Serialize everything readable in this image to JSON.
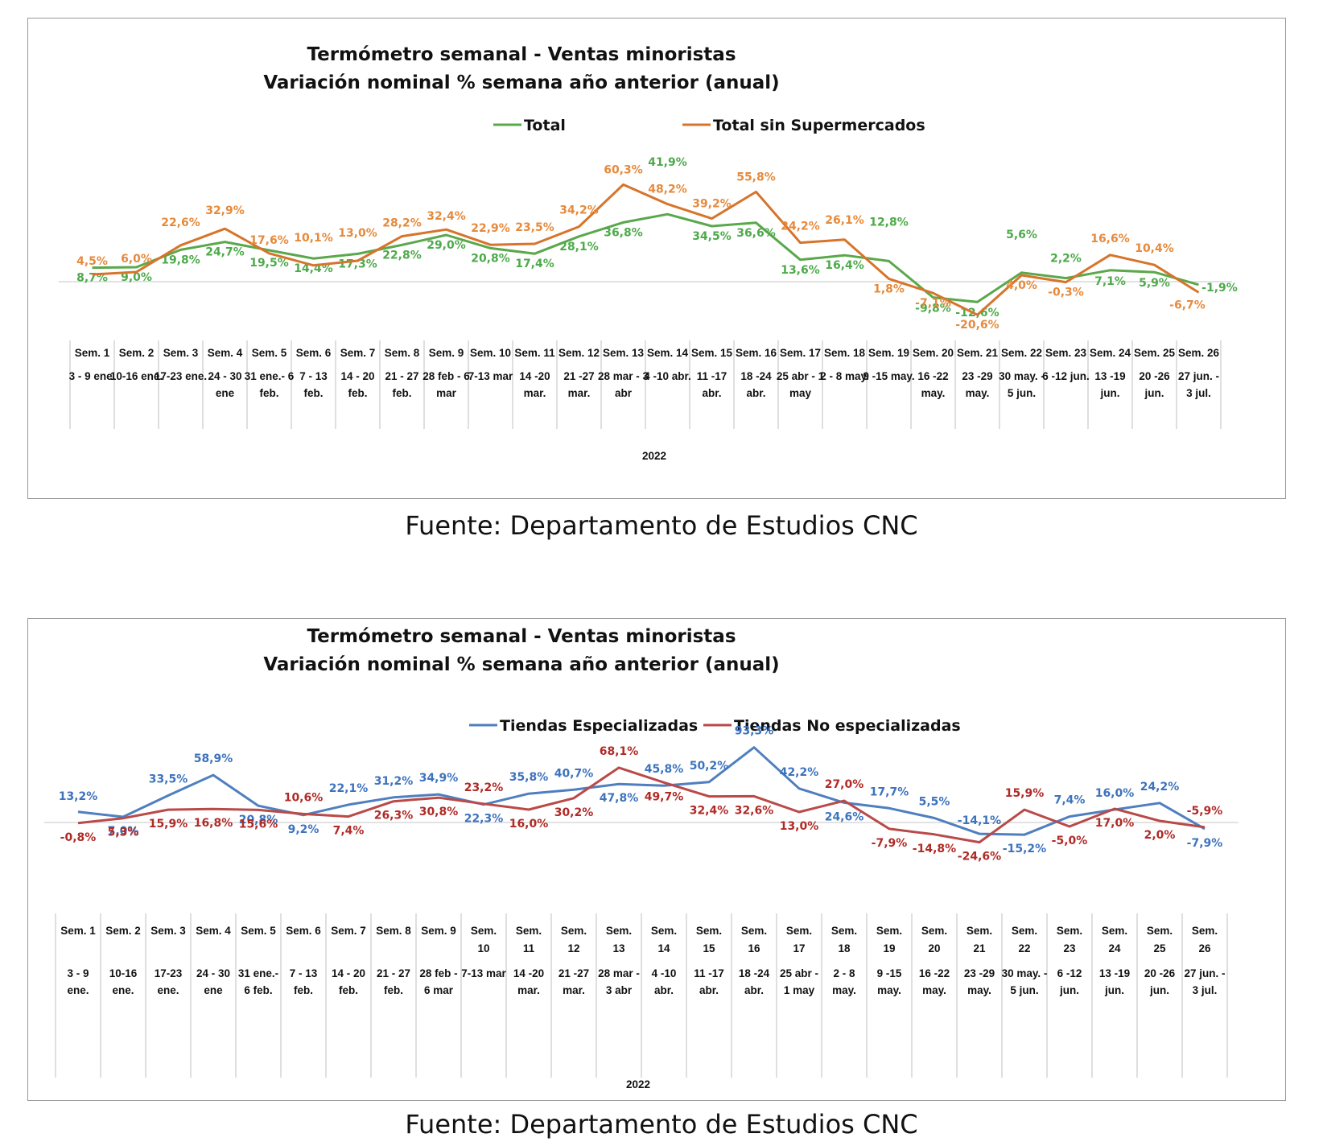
{
  "chart_data": [
    {
      "type": "line",
      "title": "Termómetro semanal - Ventas minoristas",
      "subtitle": "Variación nominal % semana año anterior (anual)",
      "year_label": "2022",
      "categories": [
        {
          "week": "Sem. 1",
          "range": "3 - 9 ene."
        },
        {
          "week": "Sem. 2",
          "range": "10-16 ene."
        },
        {
          "week": "Sem. 3",
          "range": "17-23 ene."
        },
        {
          "week": "Sem. 4",
          "range": "24 - 30 ene"
        },
        {
          "week": "Sem. 5",
          "range": "31 ene.- 6 feb."
        },
        {
          "week": "Sem. 6",
          "range": "7 - 13 feb."
        },
        {
          "week": "Sem. 7",
          "range": "14 - 20 feb."
        },
        {
          "week": "Sem. 8",
          "range": "21 - 27 feb."
        },
        {
          "week": "Sem. 9",
          "range": "28 feb - 6 mar"
        },
        {
          "week": "Sem. 10",
          "range": "7-13 mar"
        },
        {
          "week": "Sem. 11",
          "range": "14 -20 mar."
        },
        {
          "week": "Sem. 12",
          "range": "21 -27 mar."
        },
        {
          "week": "Sem. 13",
          "range": "28 mar - 3 abr"
        },
        {
          "week": "Sem. 14",
          "range": "4 -10 abr."
        },
        {
          "week": "Sem. 15",
          "range": "11 -17 abr."
        },
        {
          "week": "Sem. 16",
          "range": "18 -24 abr."
        },
        {
          "week": "Sem. 17",
          "range": "25 abr - 1 may"
        },
        {
          "week": "Sem. 18",
          "range": "2 - 8 may."
        },
        {
          "week": "Sem. 19",
          "range": "9 -15 may."
        },
        {
          "week": "Sem. 20",
          "range": "16 -22 may."
        },
        {
          "week": "Sem. 21",
          "range": "23 -29 may."
        },
        {
          "week": "Sem. 22",
          "range": "30 may. - 5 jun."
        },
        {
          "week": "Sem. 23",
          "range": "6 -12 jun."
        },
        {
          "week": "Sem. 24",
          "range": "13 -19 jun."
        },
        {
          "week": "Sem. 25",
          "range": "20 -26 jun."
        },
        {
          "week": "Sem. 26",
          "range": "27 jun. - 3 jul."
        }
      ],
      "series": [
        {
          "name": "Total",
          "color": "#5aa84b",
          "label_color": "#4daa4a",
          "values": [
            8.7,
            9.0,
            19.8,
            24.7,
            19.5,
            14.4,
            17.3,
            22.8,
            29.0,
            20.8,
            17.4,
            28.1,
            36.8,
            41.9,
            34.5,
            36.6,
            13.6,
            16.4,
            12.8,
            -9.8,
            -12.6,
            5.6,
            2.2,
            7.1,
            5.9,
            -1.9
          ],
          "labels": [
            "8,7%",
            "9,0%",
            "19,8%",
            "24,7%",
            "19,5%",
            "14,4%",
            "17,3%",
            "22,8%",
            "29,0%",
            "20,8%",
            "17,4%",
            "28,1%",
            "36,8%",
            "41,9%",
            "34,5%",
            "36,6%",
            "13,6%",
            "16,4%",
            "12,8%",
            "-9,8%",
            "-12,6%",
            "5,6%",
            "2,2%",
            "7,1%",
            "5,9%",
            "-1,9%"
          ]
        },
        {
          "name": "Total sin Supermercados",
          "color": "#d7742b",
          "label_color": "#e68a3c",
          "values": [
            4.5,
            6.0,
            22.6,
            32.9,
            17.6,
            10.1,
            13.0,
            28.2,
            32.4,
            22.9,
            23.5,
            34.2,
            60.3,
            48.2,
            39.2,
            55.8,
            24.2,
            26.1,
            1.8,
            -7.1,
            -20.6,
            4.0,
            -0.3,
            16.6,
            10.4,
            -6.7
          ],
          "labels": [
            "4,5%",
            "6,0%",
            "22,6%",
            "32,9%",
            "17,6%",
            "10,1%",
            "13,0%",
            "28,2%",
            "32,4%",
            "22,9%",
            "23,5%",
            "34,2%",
            "60,3%",
            "48,2%",
            "39,2%",
            "55,8%",
            "24,2%",
            "26,1%",
            "1,8%",
            "-7,1%",
            "-20,6%",
            "4,0%",
            "-0,3%",
            "16,6%",
            "10,4%",
            "-6,7%"
          ]
        }
      ],
      "source": "Fuente: Departamento de Estudios CNC"
    },
    {
      "type": "line",
      "title": "Termómetro semanal - Ventas minoristas",
      "subtitle": "Variación nominal % semana año anterior (anual)",
      "year_label": "2022",
      "categories": [
        {
          "week": "Sem. 1",
          "range": "3 - 9 ene."
        },
        {
          "week": "Sem. 2",
          "range": "10-16 ene."
        },
        {
          "week": "Sem. 3",
          "range": "17-23 ene."
        },
        {
          "week": "Sem. 4",
          "range": "24 - 30 ene"
        },
        {
          "week": "Sem. 5",
          "range": "31 ene.- 6 feb."
        },
        {
          "week": "Sem. 6",
          "range": "7 - 13 feb."
        },
        {
          "week": "Sem. 7",
          "range": "14 - 20 feb."
        },
        {
          "week": "Sem. 8",
          "range": "21 - 27 feb."
        },
        {
          "week": "Sem. 9",
          "range": "28 feb - 6 mar"
        },
        {
          "week": "Sem. 10",
          "range": "7-13 mar"
        },
        {
          "week": "Sem. 11",
          "range": "14 -20 mar."
        },
        {
          "week": "Sem. 12",
          "range": "21 -27 mar."
        },
        {
          "week": "Sem. 13",
          "range": "28 mar - 3 abr"
        },
        {
          "week": "Sem. 14",
          "range": "4 -10 abr."
        },
        {
          "week": "Sem. 15",
          "range": "11 -17 abr."
        },
        {
          "week": "Sem. 16",
          "range": "18 -24 abr."
        },
        {
          "week": "Sem. 17",
          "range": "25 abr - 1 may"
        },
        {
          "week": "Sem. 18",
          "range": "2 - 8 may."
        },
        {
          "week": "Sem. 19",
          "range": "9 -15 may."
        },
        {
          "week": "Sem. 20",
          "range": "16 -22 may."
        },
        {
          "week": "Sem. 21",
          "range": "23 -29 may."
        },
        {
          "week": "Sem. 22",
          "range": "30 may. - 5 jun."
        },
        {
          "week": "Sem. 23",
          "range": "6 -12 jun."
        },
        {
          "week": "Sem. 24",
          "range": "13 -19 jun."
        },
        {
          "week": "Sem. 25",
          "range": "20 -26 jun."
        },
        {
          "week": "Sem. 26",
          "range": "27 jun. - 3 jul."
        }
      ],
      "series": [
        {
          "name": "Tiendas Especializadas",
          "color": "#4f7fbf",
          "label_color": "#3d73bd",
          "values": [
            13.2,
            7.0,
            33.5,
            58.9,
            20.8,
            9.2,
            22.1,
            31.2,
            34.9,
            22.3,
            35.8,
            40.7,
            47.8,
            45.8,
            50.2,
            93.3,
            42.2,
            24.6,
            17.7,
            5.5,
            -14.1,
            -15.2,
            7.4,
            16.0,
            24.2,
            -7.9
          ],
          "labels": [
            "13,2%",
            "7,0%",
            "33,5%",
            "58,9%",
            "20,8%",
            "9,2%",
            "22,1%",
            "31,2%",
            "34,9%",
            "22,3%",
            "35,8%",
            "40,7%",
            "47,8%",
            "45,8%",
            "50,2%",
            "93,3%",
            "42,2%",
            "24,6%",
            "17,7%",
            "5,5%",
            "-14,1%",
            "-15,2%",
            "7,4%",
            "16,0%",
            "24,2%",
            "-7,9%"
          ]
        },
        {
          "name": "Tiendas No especializadas",
          "color": "#b94a48",
          "label_color": "#b02a26",
          "values": [
            -0.8,
            5.3,
            15.9,
            16.8,
            15.6,
            10.6,
            7.4,
            26.3,
            30.8,
            23.2,
            16.0,
            30.2,
            68.1,
            49.7,
            32.4,
            32.6,
            13.0,
            27.0,
            -7.9,
            -14.8,
            -24.6,
            15.9,
            -5.0,
            17.0,
            2.0,
            -5.9
          ],
          "labels": [
            "-0,8%",
            "5,3%",
            "15,9%",
            "16,8%",
            "15,6%",
            "10,6%",
            "7,4%",
            "26,3%",
            "30,8%",
            "23,2%",
            "16,0%",
            "30,2%",
            "68,1%",
            "49,7%",
            "32,4%",
            "32,6%",
            "13,0%",
            "27,0%",
            "-7,9%",
            "-14,8%",
            "-24,6%",
            "15,9%",
            "-5,0%",
            "17,0%",
            "2,0%",
            "-5,9%"
          ]
        }
      ],
      "source": "Fuente: Departamento de Estudios CNC"
    }
  ]
}
